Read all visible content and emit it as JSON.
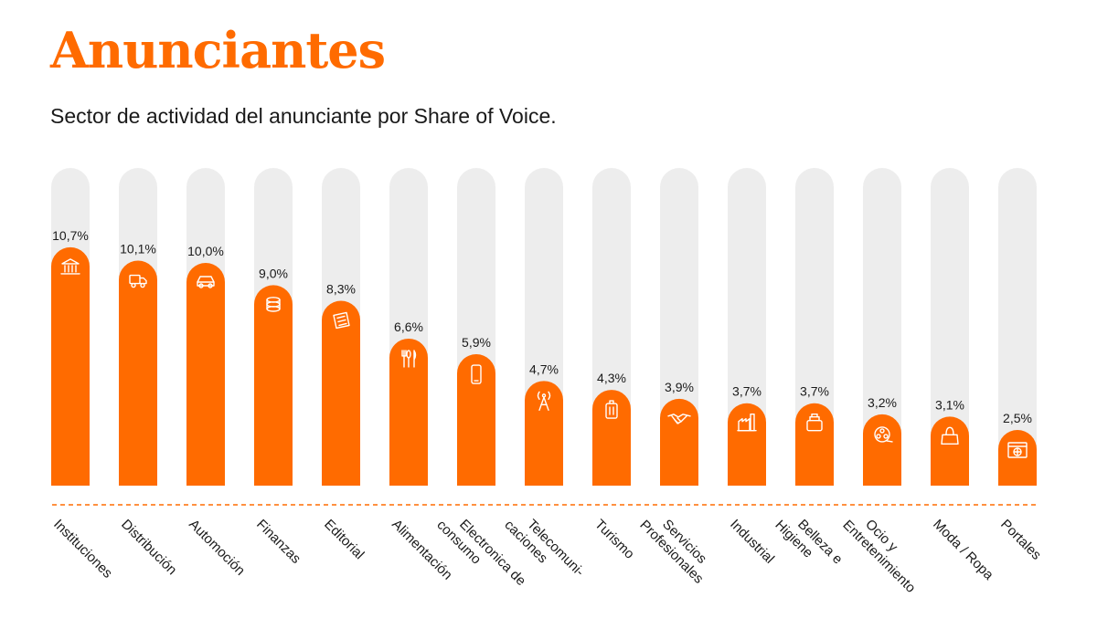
{
  "header": {
    "title": "Anunciantes",
    "subtitle": "Sector de actividad del anunciante por Share of Voice."
  },
  "colors": {
    "bar": "#ff6b00",
    "track": "#ededed",
    "title": "#ff6b00",
    "text": "#1a1a1a",
    "baseline": "#ff6b00"
  },
  "chart_data": {
    "type": "bar",
    "ylim": [
      0,
      12
    ],
    "grid": false,
    "legend": "none",
    "categories": [
      {
        "label": [
          "Instituciones"
        ],
        "value": 10.7,
        "value_label": "10,7%",
        "icon": "bank-icon"
      },
      {
        "label": [
          "Distribución"
        ],
        "value": 10.1,
        "value_label": "10,1%",
        "icon": "truck-icon"
      },
      {
        "label": [
          "Automoción"
        ],
        "value": 10.0,
        "value_label": "10,0%",
        "icon": "car-icon"
      },
      {
        "label": [
          "Finanzas"
        ],
        "value": 9.0,
        "value_label": "9,0%",
        "icon": "coins-icon"
      },
      {
        "label": [
          "Editorial"
        ],
        "value": 8.3,
        "value_label": "8,3%",
        "icon": "newspaper-icon"
      },
      {
        "label": [
          "Alimentación"
        ],
        "value": 6.6,
        "value_label": "6,6%",
        "icon": "cutlery-icon"
      },
      {
        "label": [
          "Electronica de",
          "consumo"
        ],
        "value": 5.9,
        "value_label": "5,9%",
        "icon": "smartphone-icon"
      },
      {
        "label": [
          "Telecomuni-",
          "caciones"
        ],
        "value": 4.7,
        "value_label": "4,7%",
        "icon": "antenna-icon"
      },
      {
        "label": [
          "Turismo"
        ],
        "value": 4.3,
        "value_label": "4,3%",
        "icon": "suitcase-icon"
      },
      {
        "label": [
          "Servicios",
          "Profesionales"
        ],
        "value": 3.9,
        "value_label": "3,9%",
        "icon": "handshake-icon"
      },
      {
        "label": [
          "Industrial"
        ],
        "value": 3.7,
        "value_label": "3,7%",
        "icon": "factory-icon"
      },
      {
        "label": [
          "Belleza e",
          "Higiene"
        ],
        "value": 3.7,
        "value_label": "3,7%",
        "icon": "cosmetics-icon"
      },
      {
        "label": [
          "Ocio y",
          "Entretenimiento"
        ],
        "value": 3.2,
        "value_label": "3,2%",
        "icon": "film-reel-icon"
      },
      {
        "label": [
          "Moda / Ropa"
        ],
        "value": 3.1,
        "value_label": "3,1%",
        "icon": "handbag-icon"
      },
      {
        "label": [
          "Portales"
        ],
        "value": 2.5,
        "value_label": "2,5%",
        "icon": "browser-globe-icon"
      }
    ]
  }
}
